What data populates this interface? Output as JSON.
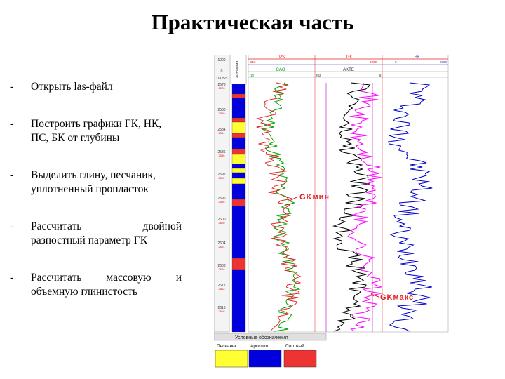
{
  "title": "Практическая часть",
  "bullets": [
    {
      "dash": "-",
      "lines": [
        "Открыть las-файл"
      ]
    },
    {
      "dash": "-",
      "lines": [
        "Построить графики ГК, НК,",
        "ПС, БК от глубины"
      ]
    },
    {
      "dash": "-",
      "lines": [
        "Выделить глину, песчаник,",
        "уплотненный пропласток"
      ]
    },
    {
      "dash": "-",
      "lines": [
        "Рассчитать двойной",
        "разностный параметр ГК"
      ]
    },
    {
      "dash": "-",
      "lines": [
        "Рассчитать массовую и",
        "объемную глинистость"
      ]
    }
  ],
  "log": {
    "track_headers": [
      "PS",
      "GK",
      "BK"
    ],
    "sub_headers": [
      "CAO",
      "AKTE"
    ],
    "scale_labels": [
      "210",
      "1000",
      "0",
      "2000",
      "10",
      "202",
      "8"
    ],
    "depth_header": [
      "1000",
      "0",
      "TVDSS"
    ],
    "lith_header": "Литология",
    "depths": [
      "2578",
      "2580",
      "2584",
      "2586",
      "2592",
      "2596",
      "2600",
      "2604",
      "2608",
      "2612",
      "2616"
    ],
    "annotations": {
      "gk_min": "GKмин",
      "gk_max": "GKмакс"
    },
    "legend": {
      "title": "Условные обозначения",
      "items": [
        {
          "label": "Песчаник",
          "color": "#ffff33"
        },
        {
          "label": "Аргиллит",
          "color": "#0000dd"
        },
        {
          "label": "Плотный",
          "color": "#ee3333"
        }
      ]
    },
    "colors": {
      "ps": "#00a000",
      "gk": "#ff00ff",
      "bk": "#0000cc",
      "black": "#000000",
      "red": "#e02020"
    }
  }
}
